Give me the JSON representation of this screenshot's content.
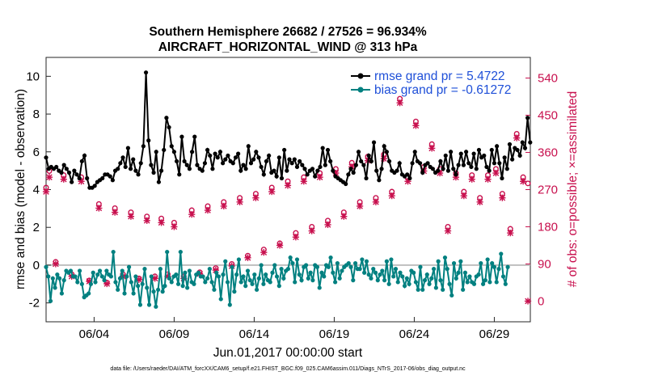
{
  "chart_data": {
    "type": "line",
    "title_line1": "Southern Hemisphere 26682 / 27526 = 96.934%",
    "title_line2": "AIRCRAFT_HORIZONTAL_WIND @ 313 hPa",
    "xlabel": "Jun.01,2017 00:00:00 start",
    "ylabel_left": "rmse and bias (model - observation)",
    "ylabel_right": "# of obs: o=possible; ×=assimilated",
    "footnote": "data file: /Users/raeder/DAI/ATM_forcXX/CAM6_setup/f.e21.FHIST_BGC.f09_025.CAM6assim.011/Diags_NTrS_2017-06/obs_diag_output.nc",
    "xlim": [
      1.0,
      31.25
    ],
    "ylim_left": [
      -3,
      11
    ],
    "ylim_right": [
      -50,
      590
    ],
    "left_ticks": [
      "-2",
      "0",
      "2",
      "4",
      "6",
      "8",
      "10"
    ],
    "left_tick_values": [
      -2,
      0,
      2,
      4,
      6,
      8,
      10
    ],
    "right_ticks": [
      "0",
      "90",
      "180",
      "270",
      "360",
      "450",
      "540"
    ],
    "right_tick_values": [
      0,
      90,
      180,
      270,
      360,
      450,
      540
    ],
    "x_ticks": [
      "06/04",
      "06/09",
      "06/14",
      "06/19",
      "06/24",
      "06/29"
    ],
    "x_tick_values": [
      4,
      9,
      14,
      19,
      24,
      29
    ],
    "colors": {
      "rmse": "#000000",
      "bias": "#008080",
      "obs": "#c8104e",
      "legend_text": "#1e4fd8",
      "zero_line": "#b3b3b3"
    },
    "series": [
      {
        "name": "rmse grand pr = 5.4722",
        "key": "rmse",
        "values": [
          5.7,
          5.1,
          5.2,
          5.1,
          5.2,
          5.0,
          4.9,
          5.3,
          5.1,
          4.9,
          4.4,
          5.0,
          4.8,
          4.6,
          5.5,
          5.8,
          4.6,
          4.1,
          4.1,
          4.2,
          4.4,
          4.5,
          4.6,
          4.8,
          4.8,
          4.7,
          4.5,
          5.0,
          5.1,
          5.4,
          5.7,
          5.2,
          6.2,
          5.1,
          5.6,
          5.0,
          4.8,
          5.4,
          6.3,
          10.2,
          6.6,
          5.3,
          4.9,
          6.0,
          4.4,
          5.0,
          6.1,
          7.8,
          7.3,
          6.3,
          6.0,
          5.5,
          4.8,
          6.8,
          5.5,
          5.3,
          5.1,
          6.0,
          6.8,
          5.3,
          5.1,
          5.0,
          5.4,
          6.1,
          5.8,
          5.1,
          5.9,
          5.7,
          6.0,
          5.4,
          5.6,
          5.8,
          5.5,
          5.4,
          5.7,
          5.9,
          5.0,
          5.3,
          5.1,
          6.3,
          5.4,
          5.6,
          6.0,
          5.7,
          5.2,
          4.8,
          5.5,
          5.8,
          4.9,
          5.0,
          4.7,
          5.7,
          4.6,
          6.1,
          5.0,
          5.6,
          5.4,
          5.6,
          5.2,
          5.5,
          5.3,
          5.1,
          4.8,
          5.0,
          5.1,
          4.7,
          5.0,
          5.2,
          6.2,
          5.3,
          6.1,
          5.5,
          5.0,
          4.7,
          4.6,
          4.5,
          4.4,
          4.3,
          4.8,
          5.1,
          4.9,
          5.3,
          6.0,
          5.5,
          5.3,
          4.6,
          5.8,
          5.5,
          6.5,
          5.0,
          4.5,
          5.1,
          6.3,
          6.0,
          5.5,
          5.0,
          4.9,
          5.0,
          5.4,
          4.8,
          4.7,
          4.8,
          4.6,
          5.4,
          6.0,
          5.5,
          5.4,
          4.9,
          5.3,
          5.4,
          5.2,
          5.1,
          4.9,
          5.0,
          5.5,
          5.1,
          5.8,
          5.0,
          6.0,
          5.1,
          4.8,
          5.3,
          5.9,
          5.3,
          6.0,
          5.4,
          5.2,
          5.9,
          5.1,
          6.1,
          5.7,
          5.8,
          5.2,
          5.0,
          6.1,
          5.4,
          6.3,
          5.4,
          4.6,
          5.7,
          5.1,
          6.4,
          5.6,
          6.2,
          6.1,
          5.8,
          6.5,
          6.2,
          7.8,
          6.5
        ],
        "x_start": 1.0,
        "x_step": 0.16
      },
      {
        "name": "bias grand pr = -0.61272",
        "key": "bias",
        "values": [
          -0.1,
          -0.6,
          -1.9,
          -0.7,
          -1.2,
          -0.5,
          -0.7,
          -1.5,
          -0.8,
          -0.3,
          -0.4,
          -0.3,
          -0.6,
          -0.6,
          -0.9,
          -0.3,
          -1.0,
          -1.7,
          -1.6,
          -1.5,
          -1.0,
          -0.4,
          -0.9,
          -0.5,
          -0.3,
          -0.6,
          -0.8,
          -0.3,
          -0.5,
          -0.6,
          0.7,
          -0.9,
          -1.3,
          -0.7,
          -0.3,
          -1.5,
          -0.6,
          -0.1,
          -0.9,
          -1.5,
          -0.6,
          -1.1,
          -2.1,
          -1.0,
          -0.2,
          -1.2,
          -2.1,
          -0.6,
          -1.4,
          -2.2,
          -1.3,
          -0.2,
          -1.4,
          -1.1,
          0.7,
          -0.7,
          -0.9,
          -0.6,
          -0.5,
          -1.0,
          0.7,
          -1.1,
          -0.4,
          -1.2,
          -0.3,
          -0.9,
          -1.0,
          -0.5,
          -0.4,
          -0.6,
          -0.6,
          -0.9,
          -0.7,
          -0.2,
          -0.9,
          -1.3,
          -0.4,
          -0.6,
          -1.8,
          -0.5,
          0.2,
          -0.9,
          -2.1,
          -0.1,
          -1.4,
          -0.5,
          0.3,
          -0.9,
          -0.6,
          -1.1,
          -0.3,
          -0.8,
          -1.0,
          -0.5,
          -1.3,
          -0.7,
          0.0,
          -1.0,
          -0.5,
          -0.8,
          -0.9,
          -0.4,
          0.0,
          -0.6,
          -1.1,
          -0.2,
          -0.7,
          -0.3,
          -0.2,
          0.4,
          0.1,
          -0.9,
          0.3,
          -0.5,
          -0.8,
          -0.1,
          0.0,
          -0.7,
          -0.4,
          -0.8,
          0.0,
          -0.1,
          -1.2,
          -0.4,
          -0.6,
          0.0,
          -0.1,
          0.4,
          -0.4,
          -0.9,
          0.1,
          -0.7,
          -0.3,
          -0.1,
          0.0,
          0.1,
          -0.1,
          -0.8,
          0.1,
          -0.2,
          -0.2,
          0.3,
          -0.4,
          0.2,
          -0.5,
          -0.7,
          -0.2,
          -0.4,
          -0.8,
          -0.5,
          -0.3,
          -0.8,
          0.2,
          -1.0,
          0.3,
          -0.6,
          -0.2,
          -0.9,
          -0.4,
          -0.6,
          -1.1,
          -0.7,
          -1.0,
          -0.3,
          -0.4,
          -0.9,
          -1.3,
          -0.1,
          -1.3,
          -0.8,
          -0.5,
          -1.0,
          -0.7,
          -0.2,
          -1.2,
          0.2,
          -0.8,
          -1.3,
          0.4,
          -0.2,
          -1.0,
          -1.6,
          0.1,
          -0.7,
          -0.4,
          0.2,
          -1.3,
          -0.4,
          -0.9,
          -0.6,
          -0.9,
          -1.0,
          -0.6,
          -0.5,
          0.1,
          -1.0,
          -0.8,
          0.3,
          -0.9,
          0.1,
          -0.1,
          -0.9,
          -0.2,
          0.6,
          -0.6,
          -1.0,
          -0.1
        ],
        "x_start": 1.0,
        "x_step": 0.14
      }
    ],
    "obs_possible": {
      "x": [
        1.0,
        1.2,
        1.6,
        2.1,
        2.6,
        3.2,
        3.7,
        4.3,
        4.8,
        5.3,
        5.8,
        6.3,
        6.8,
        7.3,
        7.8,
        8.2,
        8.6,
        9.0,
        9.6,
        10.1,
        10.6,
        11.1,
        11.6,
        12.1,
        12.6,
        13.1,
        13.6,
        14.1,
        14.6,
        15.1,
        15.6,
        16.1,
        16.6,
        17.1,
        17.6,
        18.1,
        18.6,
        19.1,
        19.6,
        20.1,
        20.6,
        21.1,
        21.6,
        22.1,
        22.6,
        23.1,
        23.6,
        24.1,
        24.6,
        25.1,
        25.6,
        26.1,
        26.6,
        27.1,
        27.6,
        28.1,
        28.6,
        29.1,
        29.5,
        30.0,
        30.4,
        30.8,
        31.1
      ],
      "y": [
        275,
        315,
        95,
        305,
        65,
        300,
        50,
        235,
        45,
        225,
        65,
        215,
        55,
        205,
        60,
        200,
        65,
        190,
        60,
        220,
        70,
        230,
        80,
        240,
        90,
        250,
        110,
        260,
        125,
        275,
        140,
        290,
        165,
        300,
        180,
        310,
        195,
        320,
        215,
        335,
        240,
        350,
        250,
        355,
        265,
        490,
        300,
        435,
        325,
        380,
        320,
        180,
        310,
        265,
        305,
        250,
        305,
        320,
        260,
        175,
        405,
        300,
        285
      ]
    },
    "obs_assimilated": {
      "x": [
        1.0,
        1.2,
        1.6,
        2.1,
        2.6,
        3.2,
        3.7,
        4.3,
        4.8,
        5.3,
        5.8,
        6.3,
        6.8,
        7.3,
        7.8,
        8.2,
        8.6,
        9.0,
        9.6,
        10.1,
        10.6,
        11.1,
        11.6,
        12.1,
        12.6,
        13.1,
        13.6,
        14.1,
        14.6,
        15.1,
        15.6,
        16.1,
        16.6,
        17.1,
        17.6,
        18.1,
        18.6,
        19.1,
        19.6,
        20.1,
        20.6,
        21.1,
        21.6,
        22.1,
        22.6,
        23.1,
        23.6,
        24.1,
        24.6,
        25.1,
        25.6,
        26.1,
        26.6,
        27.1,
        27.6,
        28.1,
        28.6,
        29.1,
        29.5,
        30.0,
        30.4,
        30.8,
        31.1
      ],
      "y": [
        265,
        300,
        90,
        295,
        60,
        290,
        48,
        225,
        42,
        215,
        60,
        205,
        52,
        195,
        55,
        190,
        60,
        180,
        55,
        210,
        66,
        220,
        75,
        230,
        85,
        240,
        105,
        250,
        118,
        265,
        135,
        280,
        155,
        290,
        170,
        300,
        185,
        310,
        205,
        325,
        230,
        340,
        240,
        345,
        255,
        480,
        290,
        425,
        315,
        370,
        310,
        170,
        300,
        255,
        295,
        240,
        295,
        310,
        250,
        165,
        395,
        290,
        0
      ]
    },
    "zero_line": 0
  }
}
